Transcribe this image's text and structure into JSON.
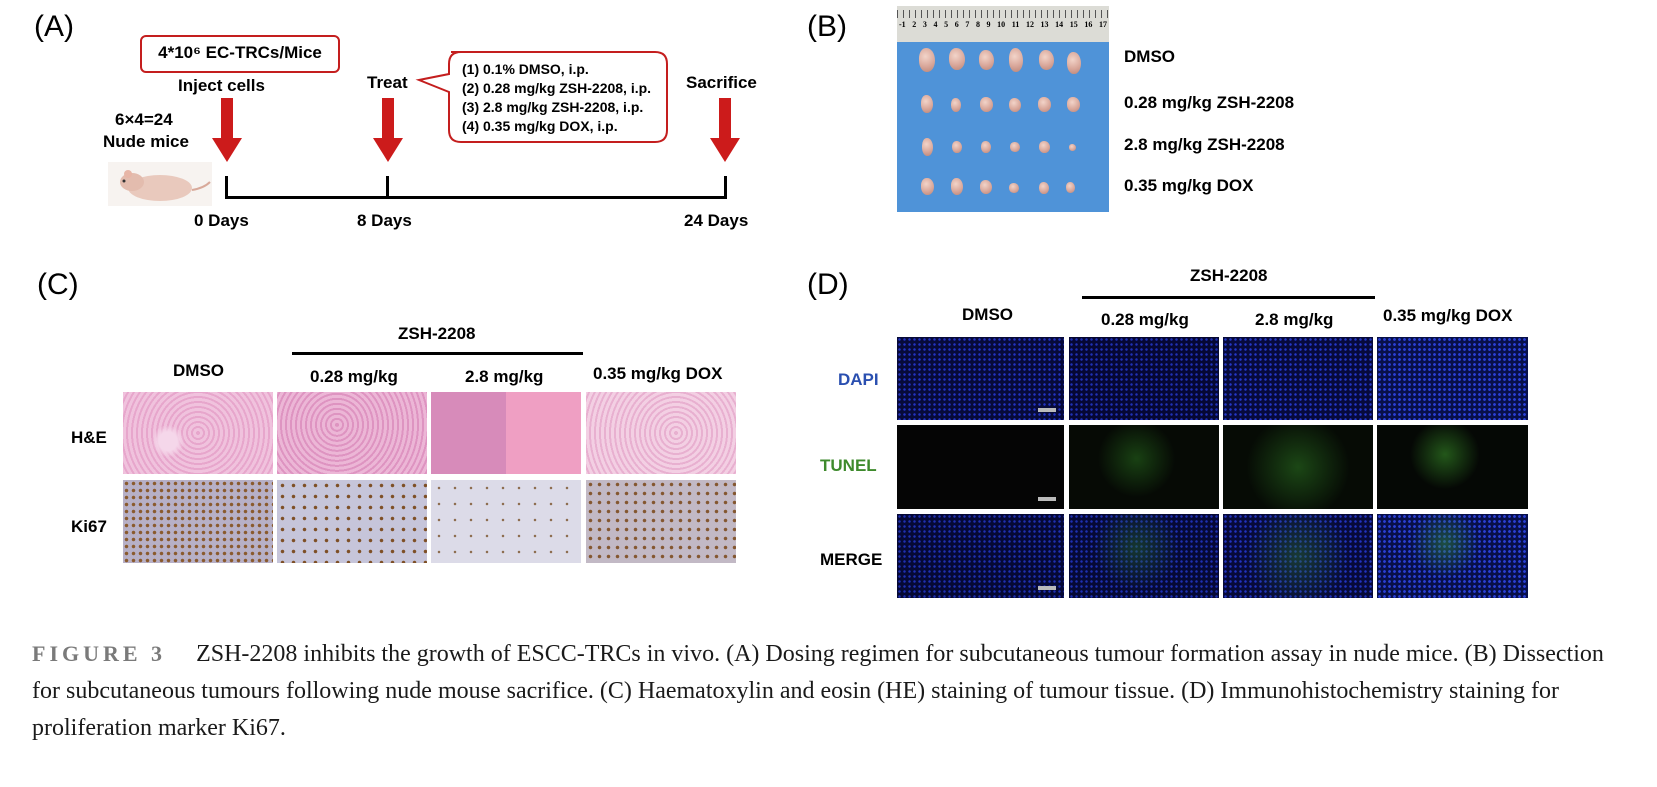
{
  "panel_A": {
    "letter": "(A)",
    "cells_box": "4*10⁶ EC-TRCs/Mice",
    "inject": "Inject cells",
    "mice_count": "6×4=24",
    "mice_label": "Nude mice",
    "treat": "Treat",
    "treatments": [
      "(1) 0.1% DMSO, i.p.",
      "(2) 0.28 mg/kg ZSH-2208, i.p.",
      "(3) 2.8 mg/kg ZSH-2208, i.p.",
      "(4) 0.35 mg/kg DOX, i.p."
    ],
    "sacrifice": "Sacrifice",
    "days": [
      "0 Days",
      "8 Days",
      "24 Days"
    ],
    "arrow_color": "#cc1b1b"
  },
  "panel_B": {
    "letter": "(B)",
    "ruler_numbers": [
      "-1",
      "2",
      "3",
      "4",
      "5",
      "6",
      "7",
      "8",
      "9",
      "10",
      "11",
      "12",
      "13",
      "14",
      "15",
      "16",
      "17"
    ],
    "groups": [
      "DMSO",
      "0.28 mg/kg ZSH-2208",
      "2.8 mg/kg ZSH-2208",
      "0.35 mg/kg DOX"
    ]
  },
  "panel_C": {
    "letter": "(C)",
    "compound": "ZSH-2208",
    "columns": [
      "DMSO",
      "0.28 mg/kg",
      "2.8 mg/kg",
      "0.35 mg/kg DOX"
    ],
    "rows": [
      "H&E",
      "Ki67"
    ]
  },
  "panel_D": {
    "letter": "(D)",
    "compound": "ZSH-2208",
    "columns": [
      "DMSO",
      "0.28 mg/kg",
      "2.8 mg/kg",
      "0.35 mg/kg DOX"
    ],
    "rows": [
      "DAPI",
      "TUNEL",
      "MERGE"
    ],
    "row_colors": [
      "#2a4fb0",
      "#3e8a2c",
      "#000000"
    ]
  },
  "caption": {
    "label": "FIGURE 3",
    "text": "ZSH-2208 inhibits the growth of ESCC-TRCs in vivo. (A) Dosing regimen for subcutaneous tumour formation assay in nude mice. (B) Dissection for subcutaneous tumours following nude mouse sacrifice. (C) Haematoxylin and eosin (HE) staining of tumour tissue. (D) Immunohistochemistry staining for proliferation marker Ki67."
  }
}
